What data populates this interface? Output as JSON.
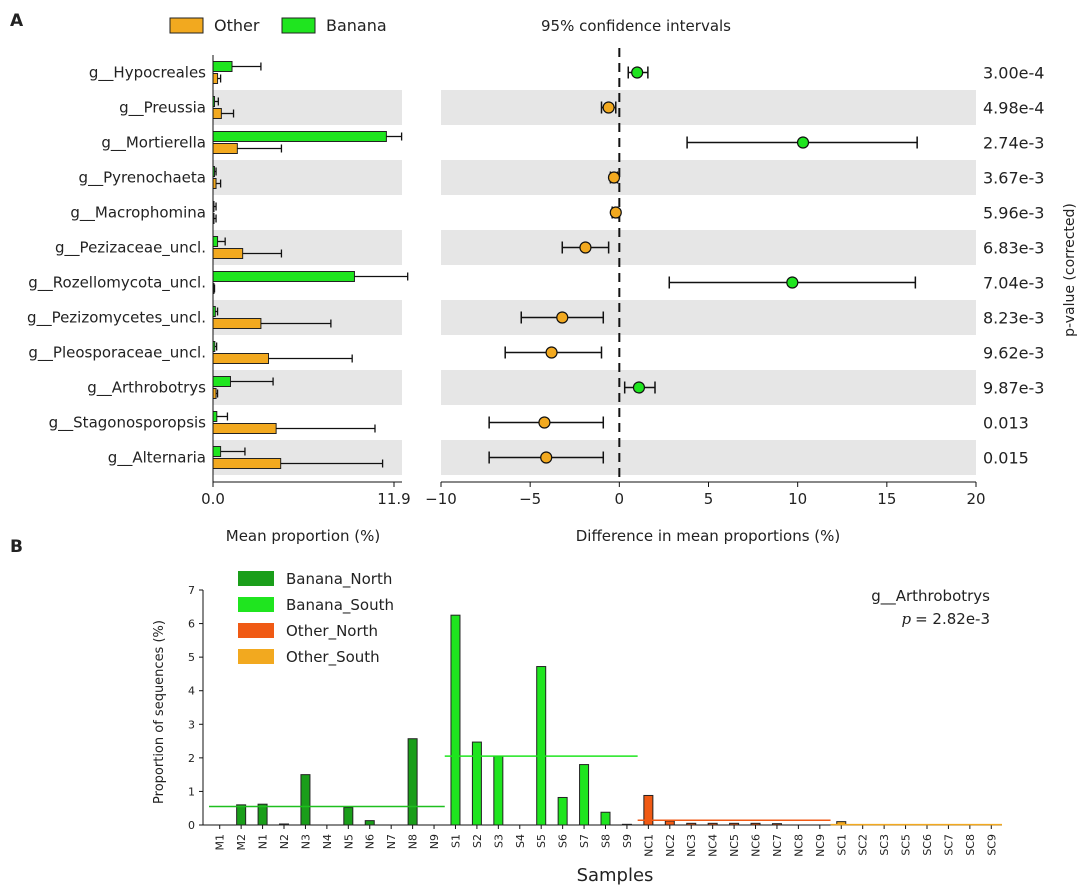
{
  "panel_a_label": "A",
  "panel_b_label": "B",
  "chart_data": [
    {
      "type": "bar",
      "subtype": "extended-error-bar (mean proportions)",
      "legend": [
        {
          "name": "Other",
          "color": "#f2a91f"
        },
        {
          "name": "Banana",
          "color": "#1fe51f"
        }
      ],
      "categories": [
        "g__Hypocreales",
        "g__Preussia",
        "g__Mortierella",
        "g__Pyrenochaeta",
        "g__Macrophomina",
        "g__Pezizaceae_uncl.",
        "g__Rozellomycota_uncl.",
        "g__Pezizomycetes_uncl.",
        "g__Pleosporaceae_uncl.",
        "g__Arthrobotrys",
        "g__Stagonosporopsis",
        "g__Alternaria"
      ],
      "series": [
        {
          "name": "Banana",
          "color": "#1fe51f",
          "values": [
            1.25,
            0.1,
            11.4,
            0.1,
            0.05,
            0.3,
            9.3,
            0.15,
            0.12,
            1.15,
            0.25,
            0.5
          ],
          "sd": [
            1.9,
            0.25,
            1.0,
            0.1,
            0.15,
            0.5,
            3.5,
            0.15,
            0.12,
            2.8,
            0.7,
            1.6
          ]
        },
        {
          "name": "Other",
          "color": "#f2a91f",
          "values": [
            0.3,
            0.55,
            1.6,
            0.2,
            0.05,
            1.95,
            0.05,
            3.15,
            3.65,
            0.2,
            4.15,
            4.45
          ],
          "sd": [
            0.2,
            0.8,
            2.9,
            0.3,
            0.15,
            2.55,
            0.05,
            4.6,
            5.5,
            0.1,
            6.5,
            6.7
          ]
        }
      ],
      "xlabel": "Mean proportion (%)",
      "xticks": [
        "0.0",
        "11.9"
      ],
      "xlim": [
        0,
        11.9
      ]
    },
    {
      "type": "scatter",
      "subtype": "difference with 95% CI",
      "title": "95% confidence intervals",
      "categories": [
        "g__Hypocreales",
        "g__Preussia",
        "g__Mortierella",
        "g__Pyrenochaeta",
        "g__Macrophomina",
        "g__Pezizaceae_uncl.",
        "g__Rozellomycota_uncl.",
        "g__Pezizomycetes_uncl.",
        "g__Pleosporaceae_uncl.",
        "g__Arthrobotrys",
        "g__Stagonosporopsis",
        "g__Alternaria"
      ],
      "values": [
        1.0,
        -0.6,
        10.3,
        -0.3,
        -0.2,
        -1.9,
        9.7,
        -3.2,
        -3.8,
        1.1,
        -4.2,
        -4.1
      ],
      "ci_low": [
        0.5,
        -1.0,
        3.8,
        -0.5,
        -0.4,
        -3.2,
        2.8,
        -5.5,
        -6.4,
        0.3,
        -7.3,
        -7.3
      ],
      "ci_high": [
        1.6,
        -0.2,
        16.7,
        -0.1,
        -0.1,
        -0.6,
        16.6,
        -0.9,
        -1.0,
        2.0,
        -0.9,
        -0.9
      ],
      "point_colors": [
        "#1fe51f",
        "#f2a91f",
        "#1fe51f",
        "#f2a91f",
        "#f2a91f",
        "#f2a91f",
        "#1fe51f",
        "#f2a91f",
        "#f2a91f",
        "#1fe51f",
        "#f2a91f",
        "#f2a91f"
      ],
      "xlabel": "Difference in mean proportions (%)",
      "xticks": [
        "−10",
        "−5",
        "0",
        "5",
        "10",
        "15",
        "20"
      ],
      "xlim": [
        -10,
        20
      ],
      "pvalues": [
        "3.00e-4",
        "4.98e-4",
        "2.74e-3",
        "3.67e-3",
        "5.96e-3",
        "6.83e-3",
        "7.04e-3",
        "8.23e-3",
        "9.62e-3",
        "9.87e-3",
        "0.013",
        "0.015"
      ],
      "pvalue_label": "p-value (corrected)"
    },
    {
      "type": "bar",
      "title": "g__Arthrobotrys",
      "subtitle_p_symbol": "p",
      "subtitle_p_value": "= 2.82e-3",
      "xlabel": "Samples",
      "ylabel": "Proportion of sequences (%)",
      "ylim": [
        0,
        7
      ],
      "yticks": [
        "0",
        "1",
        "2",
        "3",
        "4",
        "5",
        "6",
        "7"
      ],
      "legend": [
        {
          "name": "Banana_North",
          "color": "#1a9e1a"
        },
        {
          "name": "Banana_South",
          "color": "#1fe51f"
        },
        {
          "name": "Other_North",
          "color": "#f05a14"
        },
        {
          "name": "Other_South",
          "color": "#f2a91f"
        }
      ],
      "categories": [
        "M1",
        "M2",
        "N1",
        "N2",
        "N3",
        "N4",
        "N5",
        "N6",
        "N7",
        "N8",
        "N9",
        "S1",
        "S2",
        "S3",
        "S4",
        "S5",
        "S6",
        "S7",
        "S8",
        "S9",
        "NC1",
        "NC2",
        "NC3",
        "NC4",
        "NC5",
        "NC6",
        "NC7",
        "NC8",
        "NC9",
        "SC1",
        "SC2",
        "SC3",
        "SC5",
        "SC6",
        "SC7",
        "SC8",
        "SC9"
      ],
      "values": [
        0,
        0.6,
        0.62,
        0.03,
        1.5,
        0,
        0.52,
        0.13,
        0,
        2.57,
        0,
        6.25,
        2.47,
        2.05,
        0,
        4.72,
        0.82,
        1.8,
        0.38,
        0.02,
        0.88,
        0.12,
        0.05,
        0.05,
        0.05,
        0.05,
        0.04,
        0,
        0,
        0.1,
        0,
        0,
        0,
        0,
        0,
        0,
        0
      ],
      "groups": [
        "Banana_North",
        "Banana_North",
        "Banana_North",
        "Banana_North",
        "Banana_North",
        "Banana_North",
        "Banana_North",
        "Banana_North",
        "Banana_North",
        "Banana_North",
        "Banana_North",
        "Banana_South",
        "Banana_South",
        "Banana_South",
        "Banana_South",
        "Banana_South",
        "Banana_South",
        "Banana_South",
        "Banana_South",
        "Banana_South",
        "Other_North",
        "Other_North",
        "Other_North",
        "Other_North",
        "Other_North",
        "Other_North",
        "Other_North",
        "Other_North",
        "Other_North",
        "Other_South",
        "Other_South",
        "Other_South",
        "Other_South",
        "Other_South",
        "Other_South",
        "Other_South",
        "Other_South"
      ],
      "group_means": [
        {
          "group": "Banana_North",
          "value": 0.55,
          "color": "#1fbf1f"
        },
        {
          "group": "Banana_South",
          "value": 2.05,
          "color": "#1fe51f"
        },
        {
          "group": "Other_North",
          "value": 0.14,
          "color": "#f05a14"
        },
        {
          "group": "Other_South",
          "value": 0.01,
          "color": "#f2a91f"
        }
      ]
    }
  ]
}
